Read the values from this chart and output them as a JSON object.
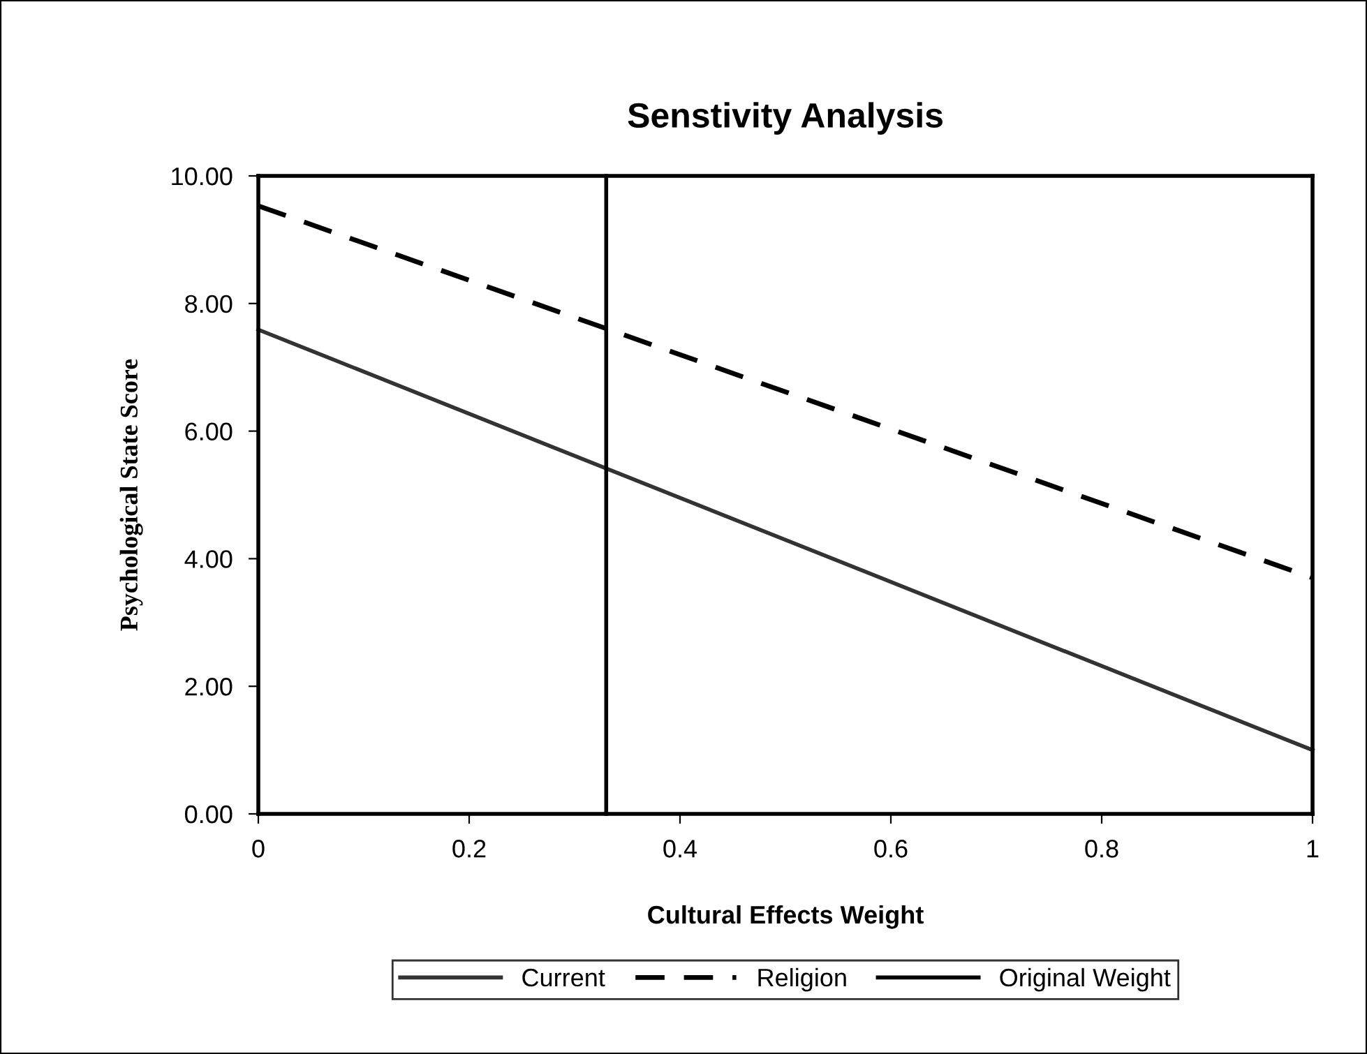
{
  "chart_data": {
    "type": "line",
    "title": "Senstivity Analysis",
    "xlabel": "Cultural Effects Weight",
    "ylabel": "Psychological State Score",
    "xlim": [
      0,
      1
    ],
    "xticks": [
      0,
      0.2,
      0.4,
      0.6,
      0.8,
      1
    ],
    "ylim": [
      0,
      10
    ],
    "yticks": [
      {
        "value": 0,
        "label": "0.00"
      },
      {
        "value": 2,
        "label": "2.00"
      },
      {
        "value": 4,
        "label": "4.00"
      },
      {
        "value": 6,
        "label": "6.00"
      },
      {
        "value": 8,
        "label": "8.00"
      },
      {
        "value": 10,
        "label": "10.00"
      }
    ],
    "grid": false,
    "legend": "bottom",
    "marker": "none",
    "series": [
      {
        "name": "Current",
        "color": "#333333",
        "line_style": "solid",
        "x": [
          0,
          1
        ],
        "values": [
          7.59,
          1.0
        ]
      },
      {
        "name": "Religion",
        "color": "#000000",
        "line_style": "dashed",
        "x": [
          0,
          1
        ],
        "values": [
          9.53,
          3.7
        ]
      },
      {
        "name": "Original Weight",
        "color": "#000000",
        "line_style": "solid",
        "x": [
          0.33,
          0.33
        ],
        "values": [
          0,
          10
        ]
      }
    ]
  }
}
